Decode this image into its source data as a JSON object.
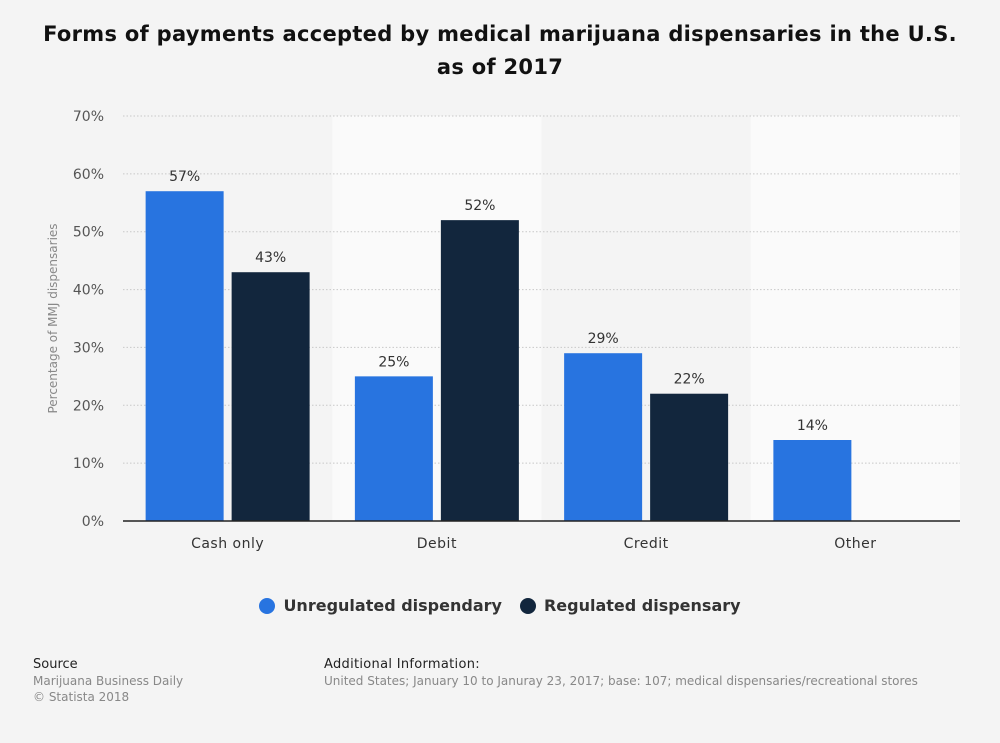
{
  "chart_data": {
    "type": "bar",
    "title": "Forms of payments accepted by medical marijuana dispensaries in the U.S. as of 2017",
    "ylabel": "Percentage of MMJ dispensaries",
    "xlabel": "",
    "ylim": [
      0,
      70
    ],
    "yticks": [
      "0%",
      "10%",
      "20%",
      "30%",
      "40%",
      "50%",
      "60%",
      "70%"
    ],
    "grid": true,
    "legend_position": "bottom",
    "categories": [
      "Cash only",
      "Debit",
      "Credit",
      "Other"
    ],
    "series": [
      {
        "name": "Unregulated dispendary",
        "color": "#2874e0",
        "values": [
          57,
          25,
          29,
          14
        ],
        "labels": [
          "57%",
          "25%",
          "29%",
          "14%"
        ]
      },
      {
        "name": "Regulated dispensary",
        "color": "#12263d",
        "values": [
          43,
          52,
          22,
          null
        ],
        "labels": [
          "43%",
          "52%",
          "22%",
          ""
        ]
      }
    ]
  },
  "footer": {
    "source_heading": "Source",
    "source_lines": [
      "Marijuana Business Daily",
      "© Statista 2018"
    ],
    "info_heading": "Additional Information:",
    "info_text": "United States; January 10 to Januray 23, 2017; base: 107; medical dispensaries/recreational stores"
  }
}
